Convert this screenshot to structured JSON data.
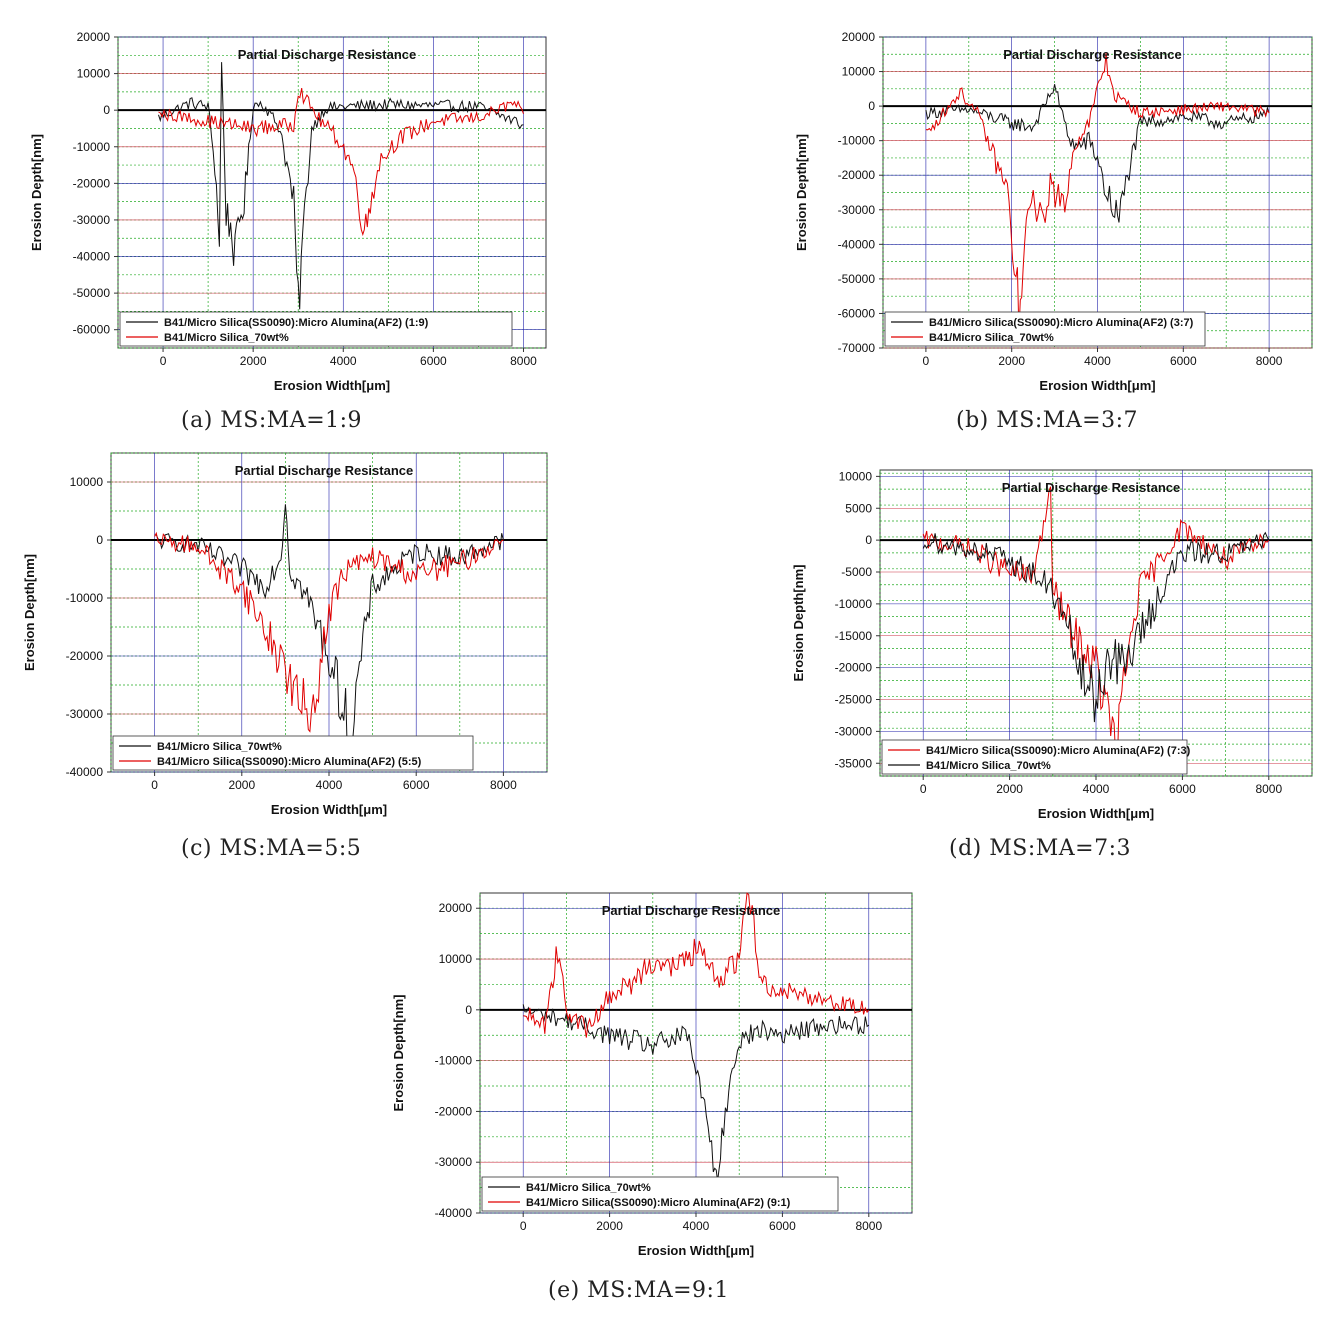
{
  "figure": {
    "captions": [
      "(a) MS:MA=1:9",
      "(b) MS:MA=3:7",
      "(c) MS:MA=5:5",
      "(d) MS:MA=7:3",
      "(e) MS:MA=9:1"
    ]
  },
  "chart_data": [
    {
      "type": "line",
      "title": "Partial Discharge Resistance",
      "xlabel": "Erosion Width[μm]",
      "ylabel": "Erosion Depth[nm]",
      "xlim": [
        -1000,
        8500
      ],
      "ylim": [
        -65000,
        20000
      ],
      "xticks": [
        0,
        2000,
        4000,
        6000,
        8000
      ],
      "yticks": [
        20000,
        10000,
        0,
        -10000,
        -20000,
        -30000,
        -40000,
        -50000,
        -60000
      ],
      "grid": true,
      "legend_position": "bottom-left",
      "series": [
        {
          "name": "B41/Micro Silica(SS0090):Micro Alumina(AF2) (1:9)",
          "color": "#111111",
          "x": [
            -100,
            600,
            1000,
            1150,
            1250,
            1300,
            1400,
            1500,
            1600,
            1700,
            1800,
            1900,
            2000,
            2200,
            2600,
            2900,
            3000,
            3100,
            3300,
            3600,
            4000,
            5000,
            6000,
            7000,
            8000
          ],
          "y": [
            -2000,
            2000,
            1000,
            -15000,
            -35000,
            13000,
            -28000,
            -32000,
            -40000,
            -30000,
            -25000,
            -12000,
            1500,
            2000,
            -5000,
            -25000,
            -55000,
            -35000,
            -5000,
            500,
            1000,
            1500,
            1200,
            1000,
            -4000
          ]
        },
        {
          "name": "B41/Micro Silica_70wt%",
          "color": "#e00000",
          "x": [
            -100,
            500,
            1000,
            2000,
            2900,
            3000,
            3500,
            3900,
            4200,
            4400,
            4500,
            4600,
            4800,
            5200,
            6000,
            7000,
            7800,
            8000
          ],
          "y": [
            -1000,
            -2000,
            -3000,
            -5000,
            -4000,
            6000,
            -3000,
            -8000,
            -15000,
            -28000,
            -33000,
            -25000,
            -14000,
            -8000,
            -3000,
            -2000,
            2000,
            -1000
          ]
        }
      ]
    },
    {
      "type": "line",
      "title": "Partial Discharge Resistance",
      "xlabel": "Erosion Width[μm]",
      "ylabel": "Erosion Depth[nm]",
      "xlim": [
        -1000,
        9000
      ],
      "ylim": [
        -70000,
        20000
      ],
      "xticks": [
        0,
        2000,
        4000,
        6000,
        8000
      ],
      "yticks": [
        20000,
        10000,
        0,
        -10000,
        -20000,
        -30000,
        -40000,
        -50000,
        -60000,
        -70000
      ],
      "grid": true,
      "legend_position": "bottom-left",
      "series": [
        {
          "name": "B41/Micro Silica(SS0090):Micro Alumina(AF2) (3:7)",
          "color": "#111111",
          "x": [
            0,
            1000,
            1500,
            2000,
            2500,
            3000,
            3300,
            3500,
            3800,
            4000,
            4200,
            4400,
            4500,
            4700,
            5000,
            6000,
            7000,
            8000
          ],
          "y": [
            -2000,
            -1000,
            -3000,
            -5000,
            -6000,
            6000,
            -8000,
            -12000,
            -10000,
            -15000,
            -25000,
            -30000,
            -33000,
            -20000,
            -5000,
            -3000,
            -5000,
            -2000
          ]
        },
        {
          "name": "B41/Micro Silica_70wt%",
          "color": "#e00000",
          "x": [
            0,
            800,
            1200,
            1600,
            1900,
            2100,
            2200,
            2300,
            2500,
            2700,
            2900,
            3200,
            3500,
            3800,
            4000,
            4200,
            4400,
            5000,
            6000,
            7000,
            8000
          ],
          "y": [
            -8000,
            4000,
            -2000,
            -15000,
            -25000,
            -50000,
            -62000,
            -40000,
            -25000,
            -35000,
            -22000,
            -30000,
            -10000,
            -5000,
            5000,
            13000,
            3000,
            -2000,
            -1000,
            0,
            -2000
          ]
        }
      ]
    },
    {
      "type": "line",
      "title": "Partial Discharge Resistance",
      "xlabel": "Erosion Width[μm]",
      "ylabel": "Erosion Depth[nm]",
      "xlim": [
        -1000,
        9000
      ],
      "ylim": [
        -40000,
        15000
      ],
      "xticks": [
        0,
        2000,
        4000,
        6000,
        8000
      ],
      "yticks": [
        10000,
        0,
        -10000,
        -20000,
        -30000,
        -40000
      ],
      "grid": true,
      "legend_position": "bottom-left",
      "series": [
        {
          "name": "B41/Micro Silica_70wt%",
          "color": "#111111",
          "x": [
            0,
            1000,
            2000,
            2500,
            2900,
            3000,
            3100,
            3500,
            4000,
            4300,
            4500,
            4700,
            5000,
            6000,
            7000,
            8000
          ],
          "y": [
            0,
            -1000,
            -5000,
            -8000,
            -3000,
            7000,
            -5000,
            -10000,
            -20000,
            -28000,
            -34000,
            -22000,
            -8000,
            -2000,
            -3000,
            0
          ]
        },
        {
          "name": "B41/Micro Silica(SS0090):Micro Alumina(AF2) (5:5)",
          "color": "#e00000",
          "x": [
            0,
            1000,
            1500,
            2000,
            2500,
            3000,
            3300,
            3600,
            3800,
            4000,
            4400,
            5000,
            6000,
            7000,
            8000
          ],
          "y": [
            0,
            -1000,
            -5000,
            -8000,
            -15000,
            -22000,
            -28000,
            -30000,
            -22000,
            -12000,
            -5000,
            -3000,
            -6000,
            -4000,
            0
          ]
        }
      ]
    },
    {
      "type": "line",
      "title": "Partial Discharge Resistance",
      "xlabel": "Erosion Width[μm]",
      "ylabel": "Erosion Depth[nm]",
      "xlim": [
        -1000,
        9000
      ],
      "ylim": [
        -37000,
        11000
      ],
      "xticks": [
        0,
        2000,
        4000,
        6000,
        8000
      ],
      "yticks": [
        10000,
        5000,
        0,
        -5000,
        -10000,
        -15000,
        -20000,
        -25000,
        -30000,
        -35000
      ],
      "grid": true,
      "legend_position": "bottom-left",
      "series": [
        {
          "name": "B41/Micro Silica(SS0090):Micro Alumina(AF2) (7:3)",
          "color": "#e00000",
          "x": [
            0,
            1000,
            2000,
            2500,
            2950,
            3000,
            3500,
            4000,
            4300,
            4500,
            4600,
            4800,
            5000,
            5500,
            6000,
            7000,
            8000
          ],
          "y": [
            0,
            -1000,
            -5000,
            -6000,
            7000,
            -8000,
            -15000,
            -20000,
            -28000,
            -33000,
            -25000,
            -15000,
            -8000,
            -3000,
            2000,
            -3000,
            0
          ]
        },
        {
          "name": "B41/Micro Silica_70wt%",
          "color": "#111111",
          "x": [
            0,
            1500,
            2500,
            3000,
            3400,
            3700,
            4000,
            4300,
            4600,
            5000,
            5500,
            6000,
            7000,
            8000
          ],
          "y": [
            0,
            -2000,
            -5000,
            -8000,
            -15000,
            -22000,
            -25000,
            -18000,
            -20000,
            -15000,
            -8000,
            -2000,
            -2000,
            0
          ]
        }
      ]
    },
    {
      "type": "line",
      "title": "Partial Discharge Resistance",
      "xlabel": "Erosion Width[μm]",
      "ylabel": "Erosion Depth[nm]",
      "xlim": [
        -1000,
        9000
      ],
      "ylim": [
        -40000,
        23000
      ],
      "xticks": [
        0,
        2000,
        4000,
        6000,
        8000
      ],
      "yticks": [
        20000,
        10000,
        0,
        -10000,
        -20000,
        -30000,
        -40000
      ],
      "grid": true,
      "legend_position": "bottom-left",
      "series": [
        {
          "name": "B41/Micro Silica_70wt%",
          "color": "#111111",
          "x": [
            0,
            1000,
            2000,
            3000,
            3800,
            4000,
            4200,
            4400,
            4500,
            4600,
            4800,
            5000,
            5500,
            6000,
            7000,
            8000
          ],
          "y": [
            0,
            -2000,
            -5000,
            -7000,
            -5000,
            -12000,
            -20000,
            -28000,
            -33000,
            -25000,
            -12000,
            -6000,
            -4000,
            -5000,
            -3000,
            -3000
          ]
        },
        {
          "name": "B41/Micro Silica(SS0090):Micro Alumina(AF2) (9:1)",
          "color": "#e00000",
          "x": [
            0,
            500,
            800,
            1000,
            1500,
            2000,
            2500,
            3000,
            3500,
            4000,
            4500,
            5000,
            5100,
            5300,
            5500,
            6000,
            7000,
            8000
          ],
          "y": [
            0,
            -3000,
            12000,
            0,
            -4000,
            3000,
            5000,
            10000,
            8000,
            12000,
            6000,
            10000,
            20000,
            21000,
            5000,
            4000,
            2000,
            0
          ]
        }
      ]
    }
  ]
}
